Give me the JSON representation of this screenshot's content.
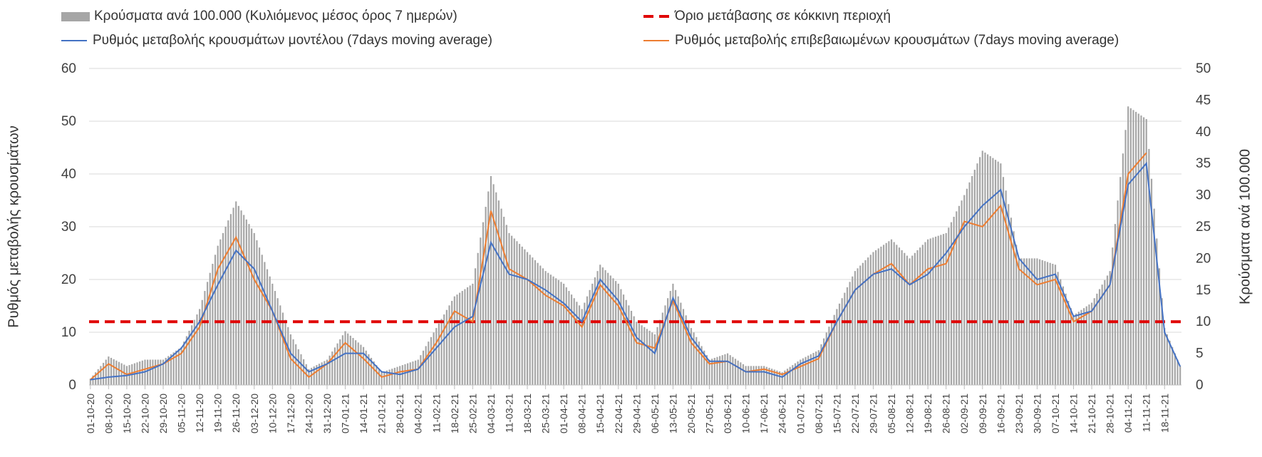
{
  "legend": {
    "bars": "Κρούσματα ανά 100.000 (Κυλιόμενος μέσος όρος 7 ημερών)",
    "threshold": "Όριο μετάβασης σε κόκκινη περιοχή",
    "model": "Ρυθμός μεταβολής κρουσμάτων μοντέλου (7days moving average)",
    "confirmed": "Ρυθμός μεταβολής επιβεβαιωμένων κρουσμάτων (7days moving average)"
  },
  "axes": {
    "y_left_title": "Ρυθμός μεταβολής κρουσμάτων",
    "y_right_title": "Κρούσματα ανά 100.000"
  },
  "colors": {
    "bars": "#a6a6a6",
    "model": "#4472c4",
    "confirmed": "#ed7d31",
    "threshold": "#e00000",
    "grid": "#d9d9d9"
  },
  "chart_data": {
    "type": "bar+line",
    "start_date": "2020-10-01",
    "end_date": "2021-11-24",
    "x_tick_labels": [
      "01-10-20",
      "08-10-20",
      "15-10-20",
      "22-10-20",
      "29-10-20",
      "05-11-20",
      "12-11-20",
      "19-11-20",
      "26-11-20",
      "03-12-20",
      "10-12-20",
      "17-12-20",
      "24-12-20",
      "31-12-20",
      "07-01-21",
      "14-01-21",
      "21-01-21",
      "28-01-21",
      "04-02-21",
      "11-02-21",
      "18-02-21",
      "25-02-21",
      "04-03-21",
      "11-03-21",
      "18-03-21",
      "25-03-21",
      "01-04-21",
      "08-04-21",
      "15-04-21",
      "22-04-21",
      "29-04-21",
      "06-05-21",
      "13-05-21",
      "20-05-21",
      "27-05-21",
      "03-06-21",
      "10-06-21",
      "17-06-21",
      "24-06-21",
      "01-07-21",
      "08-07-21",
      "15-07-21",
      "22-07-21",
      "29-07-21",
      "05-08-21",
      "12-08-21",
      "19-08-21",
      "26-08-21",
      "02-09-21",
      "09-09-21",
      "16-09-21",
      "23-09-21",
      "30-09-21",
      "07-10-21",
      "14-10-21",
      "21-10-21",
      "28-10-21",
      "04-11-21",
      "11-11-21",
      "18-11-21"
    ],
    "y_left": {
      "ticks": [
        0,
        10,
        20,
        30,
        40,
        50,
        60
      ],
      "range": [
        0,
        60
      ]
    },
    "y_right": {
      "ticks": [
        0,
        5,
        10,
        15,
        20,
        25,
        30,
        35,
        40,
        45,
        50
      ],
      "range": [
        0,
        50
      ]
    },
    "grid": true,
    "legend_position": "top",
    "threshold": {
      "axis": "right",
      "value": 10
    },
    "series": [
      {
        "name": "Κρούσματα ανά 100.000 (Κυλιόμενος μέσος όρος 7 ημερών)",
        "kind": "bar",
        "axis": "right",
        "points": [
          [
            "2020-10-01",
            1
          ],
          [
            "2020-10-08",
            4.5
          ],
          [
            "2020-10-15",
            3
          ],
          [
            "2020-10-22",
            4
          ],
          [
            "2020-10-29",
            4
          ],
          [
            "2020-11-05",
            6
          ],
          [
            "2020-11-12",
            12
          ],
          [
            "2020-11-19",
            22
          ],
          [
            "2020-11-26",
            29
          ],
          [
            "2020-12-03",
            24
          ],
          [
            "2020-12-10",
            16
          ],
          [
            "2020-12-17",
            8
          ],
          [
            "2020-12-24",
            2.5
          ],
          [
            "2020-12-31",
            4
          ],
          [
            "2021-01-07",
            8.5
          ],
          [
            "2021-01-14",
            6
          ],
          [
            "2021-01-21",
            2
          ],
          [
            "2021-01-28",
            3
          ],
          [
            "2021-02-04",
            4
          ],
          [
            "2021-02-11",
            9
          ],
          [
            "2021-02-18",
            14
          ],
          [
            "2021-02-25",
            16
          ],
          [
            "2021-03-04",
            33
          ],
          [
            "2021-03-11",
            24
          ],
          [
            "2021-03-18",
            21
          ],
          [
            "2021-03-25",
            18
          ],
          [
            "2021-04-01",
            16
          ],
          [
            "2021-04-08",
            12
          ],
          [
            "2021-04-15",
            19
          ],
          [
            "2021-04-22",
            16
          ],
          [
            "2021-04-29",
            10
          ],
          [
            "2021-05-06",
            8
          ],
          [
            "2021-05-13",
            16
          ],
          [
            "2021-05-20",
            9
          ],
          [
            "2021-05-27",
            4
          ],
          [
            "2021-06-03",
            5
          ],
          [
            "2021-06-10",
            3
          ],
          [
            "2021-06-17",
            3
          ],
          [
            "2021-06-24",
            2
          ],
          [
            "2021-07-01",
            4
          ],
          [
            "2021-07-08",
            5.5
          ],
          [
            "2021-07-15",
            12
          ],
          [
            "2021-07-22",
            18
          ],
          [
            "2021-07-29",
            21
          ],
          [
            "2021-08-05",
            23
          ],
          [
            "2021-08-12",
            20
          ],
          [
            "2021-08-19",
            23
          ],
          [
            "2021-08-26",
            24
          ],
          [
            "2021-09-02",
            30
          ],
          [
            "2021-09-09",
            37
          ],
          [
            "2021-09-16",
            35
          ],
          [
            "2021-09-23",
            20
          ],
          [
            "2021-09-30",
            20
          ],
          [
            "2021-10-07",
            19
          ],
          [
            "2021-10-14",
            11
          ],
          [
            "2021-10-21",
            13
          ],
          [
            "2021-10-28",
            18
          ],
          [
            "2021-11-04",
            44
          ],
          [
            "2021-11-11",
            42
          ],
          [
            "2021-11-18",
            9
          ],
          [
            "2021-11-24",
            3
          ]
        ]
      },
      {
        "name": "Ρυθμός μεταβολής κρουσμάτων μοντέλου (7days moving average)",
        "kind": "line",
        "axis": "left",
        "points": [
          [
            "2020-10-01",
            1
          ],
          [
            "2020-10-08",
            1.5
          ],
          [
            "2020-10-15",
            1.8
          ],
          [
            "2020-10-22",
            2.5
          ],
          [
            "2020-10-29",
            4
          ],
          [
            "2020-11-05",
            7
          ],
          [
            "2020-11-12",
            12
          ],
          [
            "2020-11-19",
            19
          ],
          [
            "2020-11-26",
            25.5
          ],
          [
            "2020-12-03",
            22
          ],
          [
            "2020-12-10",
            14
          ],
          [
            "2020-12-17",
            6
          ],
          [
            "2020-12-24",
            2.5
          ],
          [
            "2020-12-31",
            4
          ],
          [
            "2021-01-07",
            6
          ],
          [
            "2021-01-14",
            6
          ],
          [
            "2021-01-21",
            2.5
          ],
          [
            "2021-01-28",
            2
          ],
          [
            "2021-02-04",
            3
          ],
          [
            "2021-02-11",
            7
          ],
          [
            "2021-02-18",
            11
          ],
          [
            "2021-02-25",
            13
          ],
          [
            "2021-03-04",
            27
          ],
          [
            "2021-03-11",
            21
          ],
          [
            "2021-03-18",
            20
          ],
          [
            "2021-03-25",
            18
          ],
          [
            "2021-04-01",
            15.5
          ],
          [
            "2021-04-08",
            12
          ],
          [
            "2021-04-15",
            20
          ],
          [
            "2021-04-22",
            16
          ],
          [
            "2021-04-29",
            9
          ],
          [
            "2021-05-06",
            6
          ],
          [
            "2021-05-13",
            16.5
          ],
          [
            "2021-05-20",
            9
          ],
          [
            "2021-05-27",
            4.5
          ],
          [
            "2021-06-03",
            4.5
          ],
          [
            "2021-06-10",
            2.5
          ],
          [
            "2021-06-17",
            2.5
          ],
          [
            "2021-06-24",
            1.5
          ],
          [
            "2021-07-01",
            4
          ],
          [
            "2021-07-08",
            5.5
          ],
          [
            "2021-07-15",
            12
          ],
          [
            "2021-07-22",
            18
          ],
          [
            "2021-07-29",
            21
          ],
          [
            "2021-08-05",
            22
          ],
          [
            "2021-08-12",
            19
          ],
          [
            "2021-08-19",
            21
          ],
          [
            "2021-08-26",
            25
          ],
          [
            "2021-09-02",
            30
          ],
          [
            "2021-09-09",
            34
          ],
          [
            "2021-09-16",
            37
          ],
          [
            "2021-09-23",
            24
          ],
          [
            "2021-09-30",
            20
          ],
          [
            "2021-10-07",
            21
          ],
          [
            "2021-10-14",
            13
          ],
          [
            "2021-10-21",
            14
          ],
          [
            "2021-10-28",
            19
          ],
          [
            "2021-11-04",
            38
          ],
          [
            "2021-11-11",
            42
          ],
          [
            "2021-11-18",
            10
          ],
          [
            "2021-11-24",
            3.5
          ]
        ]
      },
      {
        "name": "Ρυθμός μεταβολής επιβεβαιωμένων κρουσμάτων (7days moving average)",
        "kind": "line",
        "axis": "left",
        "points": [
          [
            "2020-10-01",
            1
          ],
          [
            "2020-10-08",
            4
          ],
          [
            "2020-10-15",
            2
          ],
          [
            "2020-10-22",
            3
          ],
          [
            "2020-10-29",
            4
          ],
          [
            "2020-11-05",
            6
          ],
          [
            "2020-11-12",
            11
          ],
          [
            "2020-11-19",
            22
          ],
          [
            "2020-11-26",
            28
          ],
          [
            "2020-12-03",
            20
          ],
          [
            "2020-12-10",
            14
          ],
          [
            "2020-12-17",
            5
          ],
          [
            "2020-12-24",
            1.5
          ],
          [
            "2020-12-31",
            4
          ],
          [
            "2021-01-07",
            8
          ],
          [
            "2021-01-14",
            5
          ],
          [
            "2021-01-21",
            1.5
          ],
          [
            "2021-01-28",
            2.5
          ],
          [
            "2021-02-04",
            3
          ],
          [
            "2021-02-11",
            8
          ],
          [
            "2021-02-18",
            14
          ],
          [
            "2021-02-25",
            12
          ],
          [
            "2021-03-04",
            33
          ],
          [
            "2021-03-11",
            22
          ],
          [
            "2021-03-18",
            20
          ],
          [
            "2021-03-25",
            17
          ],
          [
            "2021-04-01",
            15
          ],
          [
            "2021-04-08",
            11
          ],
          [
            "2021-04-15",
            19
          ],
          [
            "2021-04-22",
            15
          ],
          [
            "2021-04-29",
            8
          ],
          [
            "2021-05-06",
            7
          ],
          [
            "2021-05-13",
            16
          ],
          [
            "2021-05-20",
            8
          ],
          [
            "2021-05-27",
            4
          ],
          [
            "2021-06-03",
            4.5
          ],
          [
            "2021-06-10",
            2.5
          ],
          [
            "2021-06-17",
            3
          ],
          [
            "2021-06-24",
            2
          ],
          [
            "2021-07-01",
            3.5
          ],
          [
            "2021-07-08",
            5
          ],
          [
            "2021-07-15",
            12
          ],
          [
            "2021-07-22",
            18
          ],
          [
            "2021-07-29",
            21
          ],
          [
            "2021-08-05",
            23
          ],
          [
            "2021-08-12",
            19
          ],
          [
            "2021-08-19",
            22
          ],
          [
            "2021-08-26",
            23
          ],
          [
            "2021-09-02",
            31
          ],
          [
            "2021-09-09",
            30
          ],
          [
            "2021-09-16",
            34
          ],
          [
            "2021-09-23",
            22
          ],
          [
            "2021-09-30",
            19
          ],
          [
            "2021-10-07",
            20
          ],
          [
            "2021-10-14",
            12
          ],
          [
            "2021-10-21",
            14
          ],
          [
            "2021-10-28",
            19
          ],
          [
            "2021-11-04",
            40
          ],
          [
            "2021-11-11",
            44
          ]
        ]
      }
    ]
  }
}
